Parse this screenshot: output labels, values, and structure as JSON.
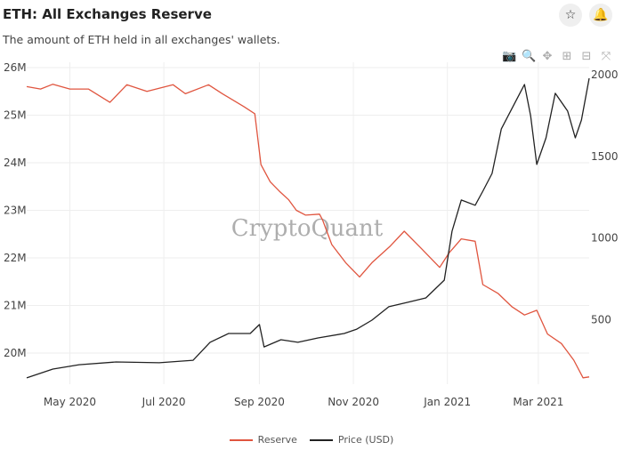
{
  "header": {
    "title": "ETH: All Exchanges Reserve",
    "subtitle": "The amount of ETH held in all exchanges' wallets.",
    "star_icon": "star-icon",
    "bell_icon": "bell-icon"
  },
  "toolbar": [
    "camera-icon",
    "zoom-icon",
    "pan-icon",
    "zoom-in-icon",
    "zoom-out-icon",
    "autoscale-icon"
  ],
  "watermark": "CryptoQuant",
  "chart_data": {
    "type": "line",
    "title": "ETH: All Exchanges Reserve",
    "grid": true,
    "legend_placement": "bottom-center",
    "x_range": [
      "2020-04-03",
      "2021-04-03"
    ],
    "x_ticks": [
      {
        "date": "2020-05-01",
        "label": "May 2020"
      },
      {
        "date": "2020-07-01",
        "label": "Jul 2020"
      },
      {
        "date": "2020-09-01",
        "label": "Sep 2020"
      },
      {
        "date": "2020-11-01",
        "label": "Nov 2020"
      },
      {
        "date": "2021-01-01",
        "label": "Jan 2021"
      },
      {
        "date": "2021-03-01",
        "label": "Mar 2021"
      }
    ],
    "y_left": {
      "range": [
        19.4,
        26
      ],
      "unit": "M",
      "ticks": [
        {
          "v": 20,
          "label": "20M"
        },
        {
          "v": 21,
          "label": "21M"
        },
        {
          "v": 22,
          "label": "22M"
        },
        {
          "v": 23,
          "label": "23M"
        },
        {
          "v": 24,
          "label": "24M"
        },
        {
          "v": 25,
          "label": "25M"
        },
        {
          "v": 26,
          "label": "26M"
        }
      ]
    },
    "y_right": {
      "range": [
        0,
        2040
      ],
      "ticks": [
        {
          "v": 500,
          "label": "500"
        },
        {
          "v": 1000,
          "label": "1000"
        },
        {
          "v": 1500,
          "label": "1500"
        },
        {
          "v": 2000,
          "label": "2000"
        }
      ]
    },
    "series": [
      {
        "name": "Reserve",
        "axis": "left",
        "color": "#e0553f",
        "points": [
          [
            "2020-04-03",
            25.6
          ],
          [
            "2020-04-12",
            25.55
          ],
          [
            "2020-04-20",
            25.65
          ],
          [
            "2020-05-01",
            25.55
          ],
          [
            "2020-05-13",
            25.55
          ],
          [
            "2020-05-27",
            25.27
          ],
          [
            "2020-06-07",
            25.64
          ],
          [
            "2020-06-20",
            25.5
          ],
          [
            "2020-07-07",
            25.64
          ],
          [
            "2020-07-15",
            25.45
          ],
          [
            "2020-07-30",
            25.64
          ],
          [
            "2020-08-08",
            25.45
          ],
          [
            "2020-08-22",
            25.18
          ],
          [
            "2020-08-29",
            25.03
          ],
          [
            "2020-09-02",
            23.96
          ],
          [
            "2020-09-08",
            23.6
          ],
          [
            "2020-09-14",
            23.4
          ],
          [
            "2020-09-20",
            23.22
          ],
          [
            "2020-09-25",
            23.0
          ],
          [
            "2020-10-01",
            22.9
          ],
          [
            "2020-10-10",
            22.92
          ],
          [
            "2020-10-12",
            22.8
          ],
          [
            "2020-10-18",
            22.28
          ],
          [
            "2020-10-27",
            21.9
          ],
          [
            "2020-11-05",
            21.6
          ],
          [
            "2020-11-13",
            21.9
          ],
          [
            "2020-11-25",
            22.25
          ],
          [
            "2020-12-04",
            22.56
          ],
          [
            "2020-12-15",
            22.2
          ],
          [
            "2020-12-27",
            21.8
          ],
          [
            "2021-01-02",
            22.1
          ],
          [
            "2021-01-10",
            22.4
          ],
          [
            "2021-01-19",
            22.35
          ],
          [
            "2021-01-24",
            21.44
          ],
          [
            "2021-02-03",
            21.25
          ],
          [
            "2021-02-12",
            20.97
          ],
          [
            "2021-02-20",
            20.8
          ],
          [
            "2021-02-28",
            20.9
          ],
          [
            "2021-03-07",
            20.4
          ],
          [
            "2021-03-16",
            20.2
          ],
          [
            "2021-03-24",
            19.85
          ],
          [
            "2021-03-30",
            19.48
          ],
          [
            "2021-04-03",
            19.5
          ]
        ]
      },
      {
        "name": "Price (USD)",
        "axis": "right",
        "color": "#222222",
        "points": [
          [
            "2020-04-03",
            142
          ],
          [
            "2020-04-20",
            196
          ],
          [
            "2020-05-07",
            223
          ],
          [
            "2020-05-31",
            240
          ],
          [
            "2020-06-28",
            235
          ],
          [
            "2020-07-20",
            250
          ],
          [
            "2020-07-31",
            360
          ],
          [
            "2020-08-12",
            414
          ],
          [
            "2020-08-26",
            414
          ],
          [
            "2020-09-01",
            469
          ],
          [
            "2020-09-04",
            332
          ],
          [
            "2020-09-15",
            376
          ],
          [
            "2020-09-26",
            360
          ],
          [
            "2020-10-09",
            387
          ],
          [
            "2020-10-26",
            414
          ],
          [
            "2020-11-03",
            440
          ],
          [
            "2020-11-13",
            496
          ],
          [
            "2020-11-24",
            578
          ],
          [
            "2020-12-06",
            605
          ],
          [
            "2020-12-18",
            632
          ],
          [
            "2020-12-30",
            741
          ],
          [
            "2021-01-04",
            1041
          ],
          [
            "2021-01-10",
            1232
          ],
          [
            "2021-01-19",
            1200
          ],
          [
            "2021-01-24",
            1286
          ],
          [
            "2021-01-30",
            1395
          ],
          [
            "2021-02-05",
            1668
          ],
          [
            "2021-02-11",
            1777
          ],
          [
            "2021-02-17",
            1886
          ],
          [
            "2021-02-20",
            1940
          ],
          [
            "2021-02-24",
            1749
          ],
          [
            "2021-02-28",
            1450
          ],
          [
            "2021-03-06",
            1613
          ],
          [
            "2021-03-12",
            1886
          ],
          [
            "2021-03-20",
            1777
          ],
          [
            "2021-03-25",
            1613
          ],
          [
            "2021-03-29",
            1722
          ],
          [
            "2021-04-03",
            1978
          ]
        ]
      }
    ]
  }
}
